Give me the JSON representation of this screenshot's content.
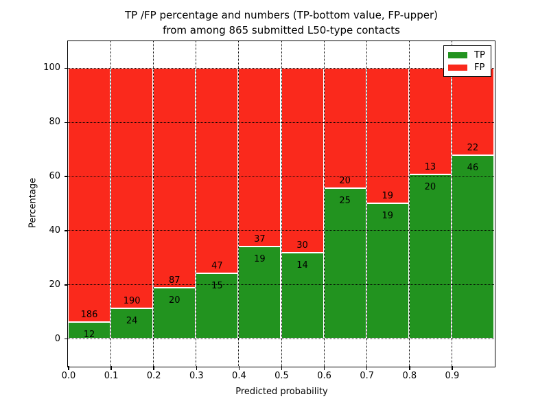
{
  "figure": {
    "title_line1": "TP /FP percentage and numbers (TP-bottom value, FP-upper)",
    "title_line2": "from among 865 submitted L50-type contacts"
  },
  "chart_data": {
    "type": "bar",
    "stacked": true,
    "title": "TP /FP percentage and numbers (TP-bottom value, FP-upper) from among 865 submitted L50-type contacts",
    "xlabel": "Predicted probability",
    "ylabel": "Percentage",
    "total_contacts": 865,
    "bin_width": 0.1,
    "categories": [
      "0.0",
      "0.1",
      "0.2",
      "0.3",
      "0.4",
      "0.5",
      "0.6",
      "0.7",
      "0.8",
      "0.9"
    ],
    "series": [
      {
        "name": "TP",
        "color": "#22931f",
        "counts": [
          12,
          24,
          20,
          15,
          19,
          14,
          25,
          19,
          20,
          46
        ],
        "percent": [
          6.06,
          11.21,
          18.69,
          24.19,
          33.93,
          31.82,
          55.56,
          50.0,
          60.61,
          67.65
        ]
      },
      {
        "name": "FP",
        "color": "#fa291c",
        "counts": [
          186,
          190,
          87,
          47,
          37,
          30,
          20,
          19,
          13,
          22
        ],
        "percent": [
          93.94,
          88.79,
          81.31,
          75.81,
          66.07,
          68.18,
          44.44,
          50.0,
          39.39,
          32.35
        ]
      }
    ],
    "xticks": [
      "0.0",
      "0.1",
      "0.2",
      "0.3",
      "0.4",
      "0.5",
      "0.6",
      "0.7",
      "0.8",
      "0.9"
    ],
    "yticks": [
      0,
      20,
      40,
      60,
      80,
      100
    ],
    "xlim": [
      0.0,
      1.0
    ],
    "ylim": [
      -10,
      110
    ],
    "grid": "dotted",
    "legend": {
      "position": "upper right",
      "entries": [
        {
          "label": "TP",
          "color": "#22931f"
        },
        {
          "label": "FP",
          "color": "#fa291c"
        }
      ]
    }
  }
}
